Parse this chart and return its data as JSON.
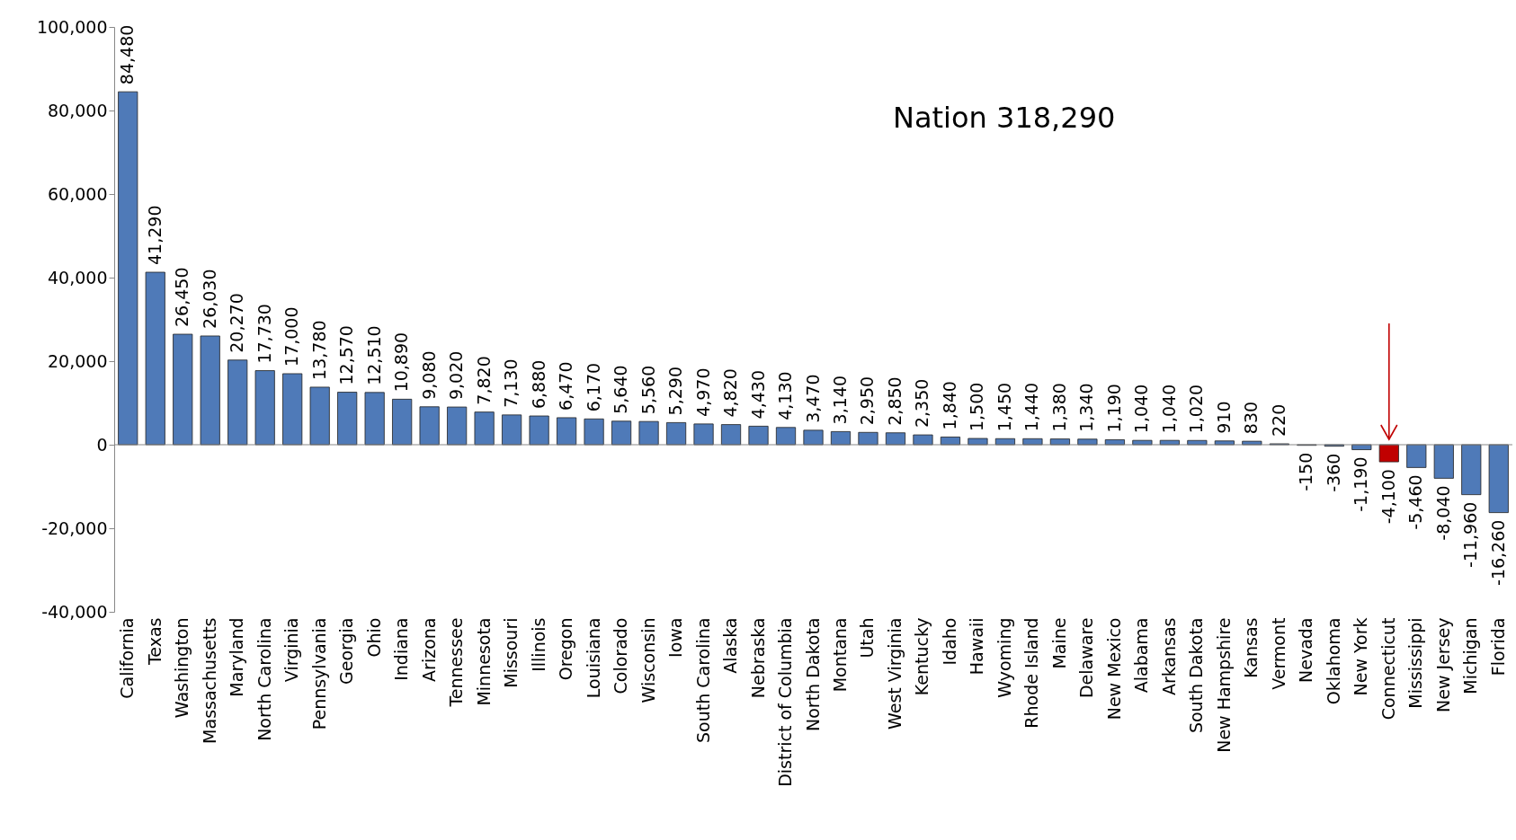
{
  "chart_data": {
    "type": "bar",
    "categories": [
      "California",
      "Texas",
      "Washington",
      "Massachusetts",
      "Maryland",
      "North Carolina",
      "Virginia",
      "Pennsylvania",
      "Georgia",
      "Ohio",
      "Indiana",
      "Arizona",
      "Tennessee",
      "Minnesota",
      "Missouri",
      "Illinois",
      "Oregon",
      "Louisiana",
      "Colorado",
      "Wisconsin",
      "Iowa",
      "South Carolina",
      "Alaska",
      "Nebraska",
      "District of Columbia",
      "North Dakota",
      "Montana",
      "Utah",
      "West Virginia",
      "Kentucky",
      "Idaho",
      "Hawaii",
      "Wyoming",
      "Rhode Island",
      "Maine",
      "Delaware",
      "New Mexico",
      "Alabama",
      "Arkansas",
      "South Dakota",
      "New Hampshire",
      "Kansas",
      "Vermont",
      "Nevada",
      "Oklahoma",
      "New York",
      "Connecticut",
      "Mississippi",
      "New Jersey",
      "Michigan",
      "Florida"
    ],
    "values": [
      84480,
      41290,
      26450,
      26030,
      20270,
      17730,
      17000,
      13780,
      12570,
      12510,
      10890,
      9080,
      9020,
      7820,
      7130,
      6880,
      6470,
      6170,
      5640,
      5560,
      5290,
      4970,
      4820,
      4430,
      4130,
      3470,
      3140,
      2950,
      2850,
      2350,
      1840,
      1500,
      1450,
      1440,
      1380,
      1340,
      1190,
      1040,
      1040,
      1020,
      910,
      830,
      220,
      -150,
      -360,
      -1190,
      -4100,
      -5460,
      -8040,
      -11960,
      -16260
    ],
    "colors": [
      "#4f7ab8",
      "#4f7ab8",
      "#4f7ab8",
      "#4f7ab8",
      "#4f7ab8",
      "#4f7ab8",
      "#4f7ab8",
      "#4f7ab8",
      "#4f7ab8",
      "#4f7ab8",
      "#4f7ab8",
      "#4f7ab8",
      "#4f7ab8",
      "#4f7ab8",
      "#4f7ab8",
      "#4f7ab8",
      "#4f7ab8",
      "#4f7ab8",
      "#4f7ab8",
      "#4f7ab8",
      "#4f7ab8",
      "#4f7ab8",
      "#4f7ab8",
      "#4f7ab8",
      "#4f7ab8",
      "#4f7ab8",
      "#4f7ab8",
      "#4f7ab8",
      "#4f7ab8",
      "#4f7ab8",
      "#4f7ab8",
      "#4f7ab8",
      "#4f7ab8",
      "#4f7ab8",
      "#4f7ab8",
      "#4f7ab8",
      "#4f7ab8",
      "#4f7ab8",
      "#4f7ab8",
      "#4f7ab8",
      "#4f7ab8",
      "#4f7ab8",
      "#4f7ab8",
      "#4f7ab8",
      "#4f7ab8",
      "#4f7ab8",
      "#c00000",
      "#4f7ab8",
      "#4f7ab8",
      "#4f7ab8",
      "#4f7ab8"
    ],
    "value_labels": [
      "84,480",
      "41,290",
      "26,450",
      "26,030",
      "20,270",
      "17,730",
      "17,000",
      "13,780",
      "12,570",
      "12,510",
      "10,890",
      "9,080",
      "9,020",
      "7,820",
      "7,130",
      "6,880",
      "6,470",
      "6,170",
      "5,640",
      "5,560",
      "5,290",
      "4,970",
      "4,820",
      "4,430",
      "4,130",
      "3,470",
      "3,140",
      "2,950",
      "2,850",
      "2,350",
      "1,840",
      "1,500",
      "1,450",
      "1,440",
      "1,380",
      "1,340",
      "1,190",
      "1,040",
      "1,040",
      "1,020",
      "910",
      "830",
      "220",
      "-150",
      "-360",
      "-1,190",
      "-4,100",
      "-5,460",
      "-8,040",
      "-11,960",
      "-16,260"
    ],
    "ylim": [
      -40000,
      100000
    ],
    "yticks": [
      {
        "value": -40000,
        "label": "-40,000"
      },
      {
        "value": -20000,
        "label": "-20,000"
      },
      0,
      {
        "value": 20000,
        "label": "20,000"
      },
      {
        "value": 40000,
        "label": "40,000"
      },
      {
        "value": 60000,
        "label": "60,000"
      },
      {
        "value": 80000,
        "label": "80,000"
      },
      {
        "value": 100000,
        "label": "100,000"
      }
    ],
    "annotations": [
      "Nation  318,290"
    ]
  }
}
